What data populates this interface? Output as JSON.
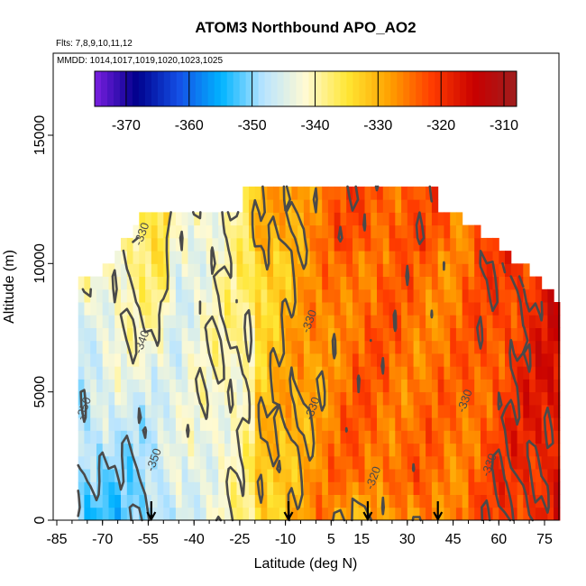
{
  "chart_data": {
    "type": "heatmap",
    "title": "ATOM3 Northbound APO_AO2",
    "subtitle_flights": "Flts: 7,8,9,10,11,12",
    "subtitle_dates": "MMDD: 1014,1017,1019,1020,1023,1025",
    "xlabel": "Latitude (deg N)",
    "ylabel": "Altitude (m)",
    "xlim": [
      -85,
      85
    ],
    "ylim": [
      0,
      17500
    ],
    "x_tick_labels": [
      "-85",
      "-70",
      "-55",
      "-40",
      "-25",
      "-10",
      "5",
      "15",
      "30",
      "45",
      "60",
      "75"
    ],
    "x_tick_values": [
      -85,
      -70,
      -55,
      -40,
      -25,
      -10,
      5,
      15,
      30,
      45,
      60,
      75
    ],
    "x_minor_step": 5,
    "y_ticks": [
      0,
      5000,
      10000,
      15000
    ],
    "y_tick_labels": [
      "0",
      "5000",
      "10000",
      "15000"
    ],
    "colorbar": {
      "min": -375,
      "max": -308,
      "ticks": [
        -370,
        -360,
        -350,
        -340,
        -330,
        -320,
        -310
      ],
      "tick_labels": [
        "-370",
        "-360",
        "-350",
        "-340",
        "-330",
        "-320",
        "-310"
      ],
      "colors": [
        "#7a1fe0",
        "#00008c",
        "#1450e6",
        "#00b4ff",
        "#b9e4ff",
        "#fffad2",
        "#ffe632",
        "#ffa000",
        "#ff3c00",
        "#c80000",
        "#a01e1e"
      ]
    },
    "contour_levels": [
      -350,
      -340,
      -330,
      -320
    ],
    "contour_labels": [
      {
        "text": "-330",
        "lat": -56,
        "alt": 11100
      },
      {
        "text": "-340",
        "lat": -56,
        "alt": 6900
      },
      {
        "text": "-350",
        "lat": -75,
        "alt": 4300
      },
      {
        "text": "-350",
        "lat": -52,
        "alt": 2300
      },
      {
        "text": "-330",
        "lat": -1,
        "alt": 7700
      },
      {
        "text": "-330",
        "lat": 0,
        "alt": 4300
      },
      {
        "text": "-320",
        "lat": 20,
        "alt": 1600
      },
      {
        "text": "-330",
        "lat": 50,
        "alt": 4600
      },
      {
        "text": "-330",
        "lat": 58,
        "alt": 2100
      }
    ],
    "profile_arrows_lat": [
      -54,
      -9,
      17,
      40
    ]
  }
}
